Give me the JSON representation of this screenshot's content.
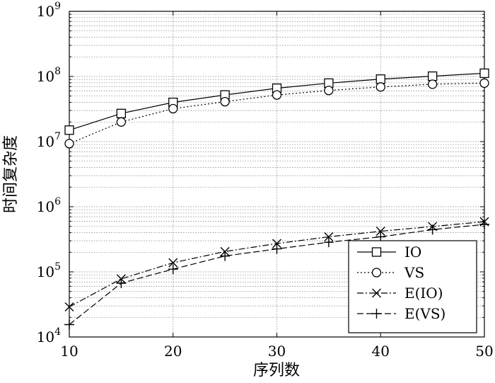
{
  "chart_data": {
    "type": "line",
    "xlabel": "序列数",
    "ylabel": "时间复杂度",
    "x": [
      10,
      15,
      20,
      25,
      30,
      35,
      40,
      45,
      50
    ],
    "xlim": [
      10,
      50
    ],
    "xticks": [
      "10",
      "20",
      "30",
      "40",
      "50"
    ],
    "ylim": [
      10000,
      1000000000
    ],
    "yscale": "log",
    "yticks": [
      {
        "base": "10",
        "exp": "4"
      },
      {
        "base": "10",
        "exp": "5"
      },
      {
        "base": "10",
        "exp": "6"
      },
      {
        "base": "10",
        "exp": "7"
      },
      {
        "base": "10",
        "exp": "8"
      },
      {
        "base": "10",
        "exp": "9"
      }
    ],
    "grid": true,
    "legend_position": "bottom-right",
    "series": [
      {
        "name": "IO",
        "marker": "square",
        "dash": "solid",
        "values": [
          15000000,
          27000000,
          40000000,
          52000000,
          66000000,
          79000000,
          91000000,
          101000000,
          112000000
        ]
      },
      {
        "name": "VS",
        "marker": "circle",
        "dash": "dotted",
        "values": [
          9300000,
          20000000,
          32000000,
          41000000,
          52000000,
          61000000,
          69000000,
          76000000,
          79000000
        ]
      },
      {
        "name": "E(IO)",
        "marker": "x",
        "dash": "dashdot",
        "values": [
          29000,
          78000,
          138000,
          205000,
          272000,
          345000,
          420000,
          497000,
          590000
        ]
      },
      {
        "name": "E(VS)",
        "marker": "plus",
        "dash": "dashed",
        "values": [
          15500,
          67000,
          110000,
          175000,
          225000,
          285000,
          345000,
          445000,
          535000
        ]
      }
    ]
  }
}
